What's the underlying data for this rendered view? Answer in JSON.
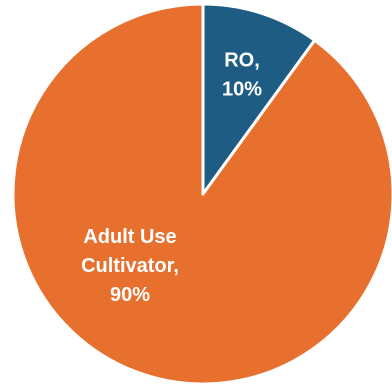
{
  "chart_data": {
    "type": "pie",
    "title": "",
    "start_angle_deg": 0,
    "direction": "clockwise",
    "slices": [
      {
        "label": "RO,",
        "value_text": "10%",
        "value": 10,
        "color": "#1F5C84"
      },
      {
        "label": "Adult Use Cultivator,",
        "value_text": "90%",
        "value": 90,
        "color": "#E8702E"
      }
    ],
    "slice_border_color": "#ffffff",
    "legend": "none"
  }
}
